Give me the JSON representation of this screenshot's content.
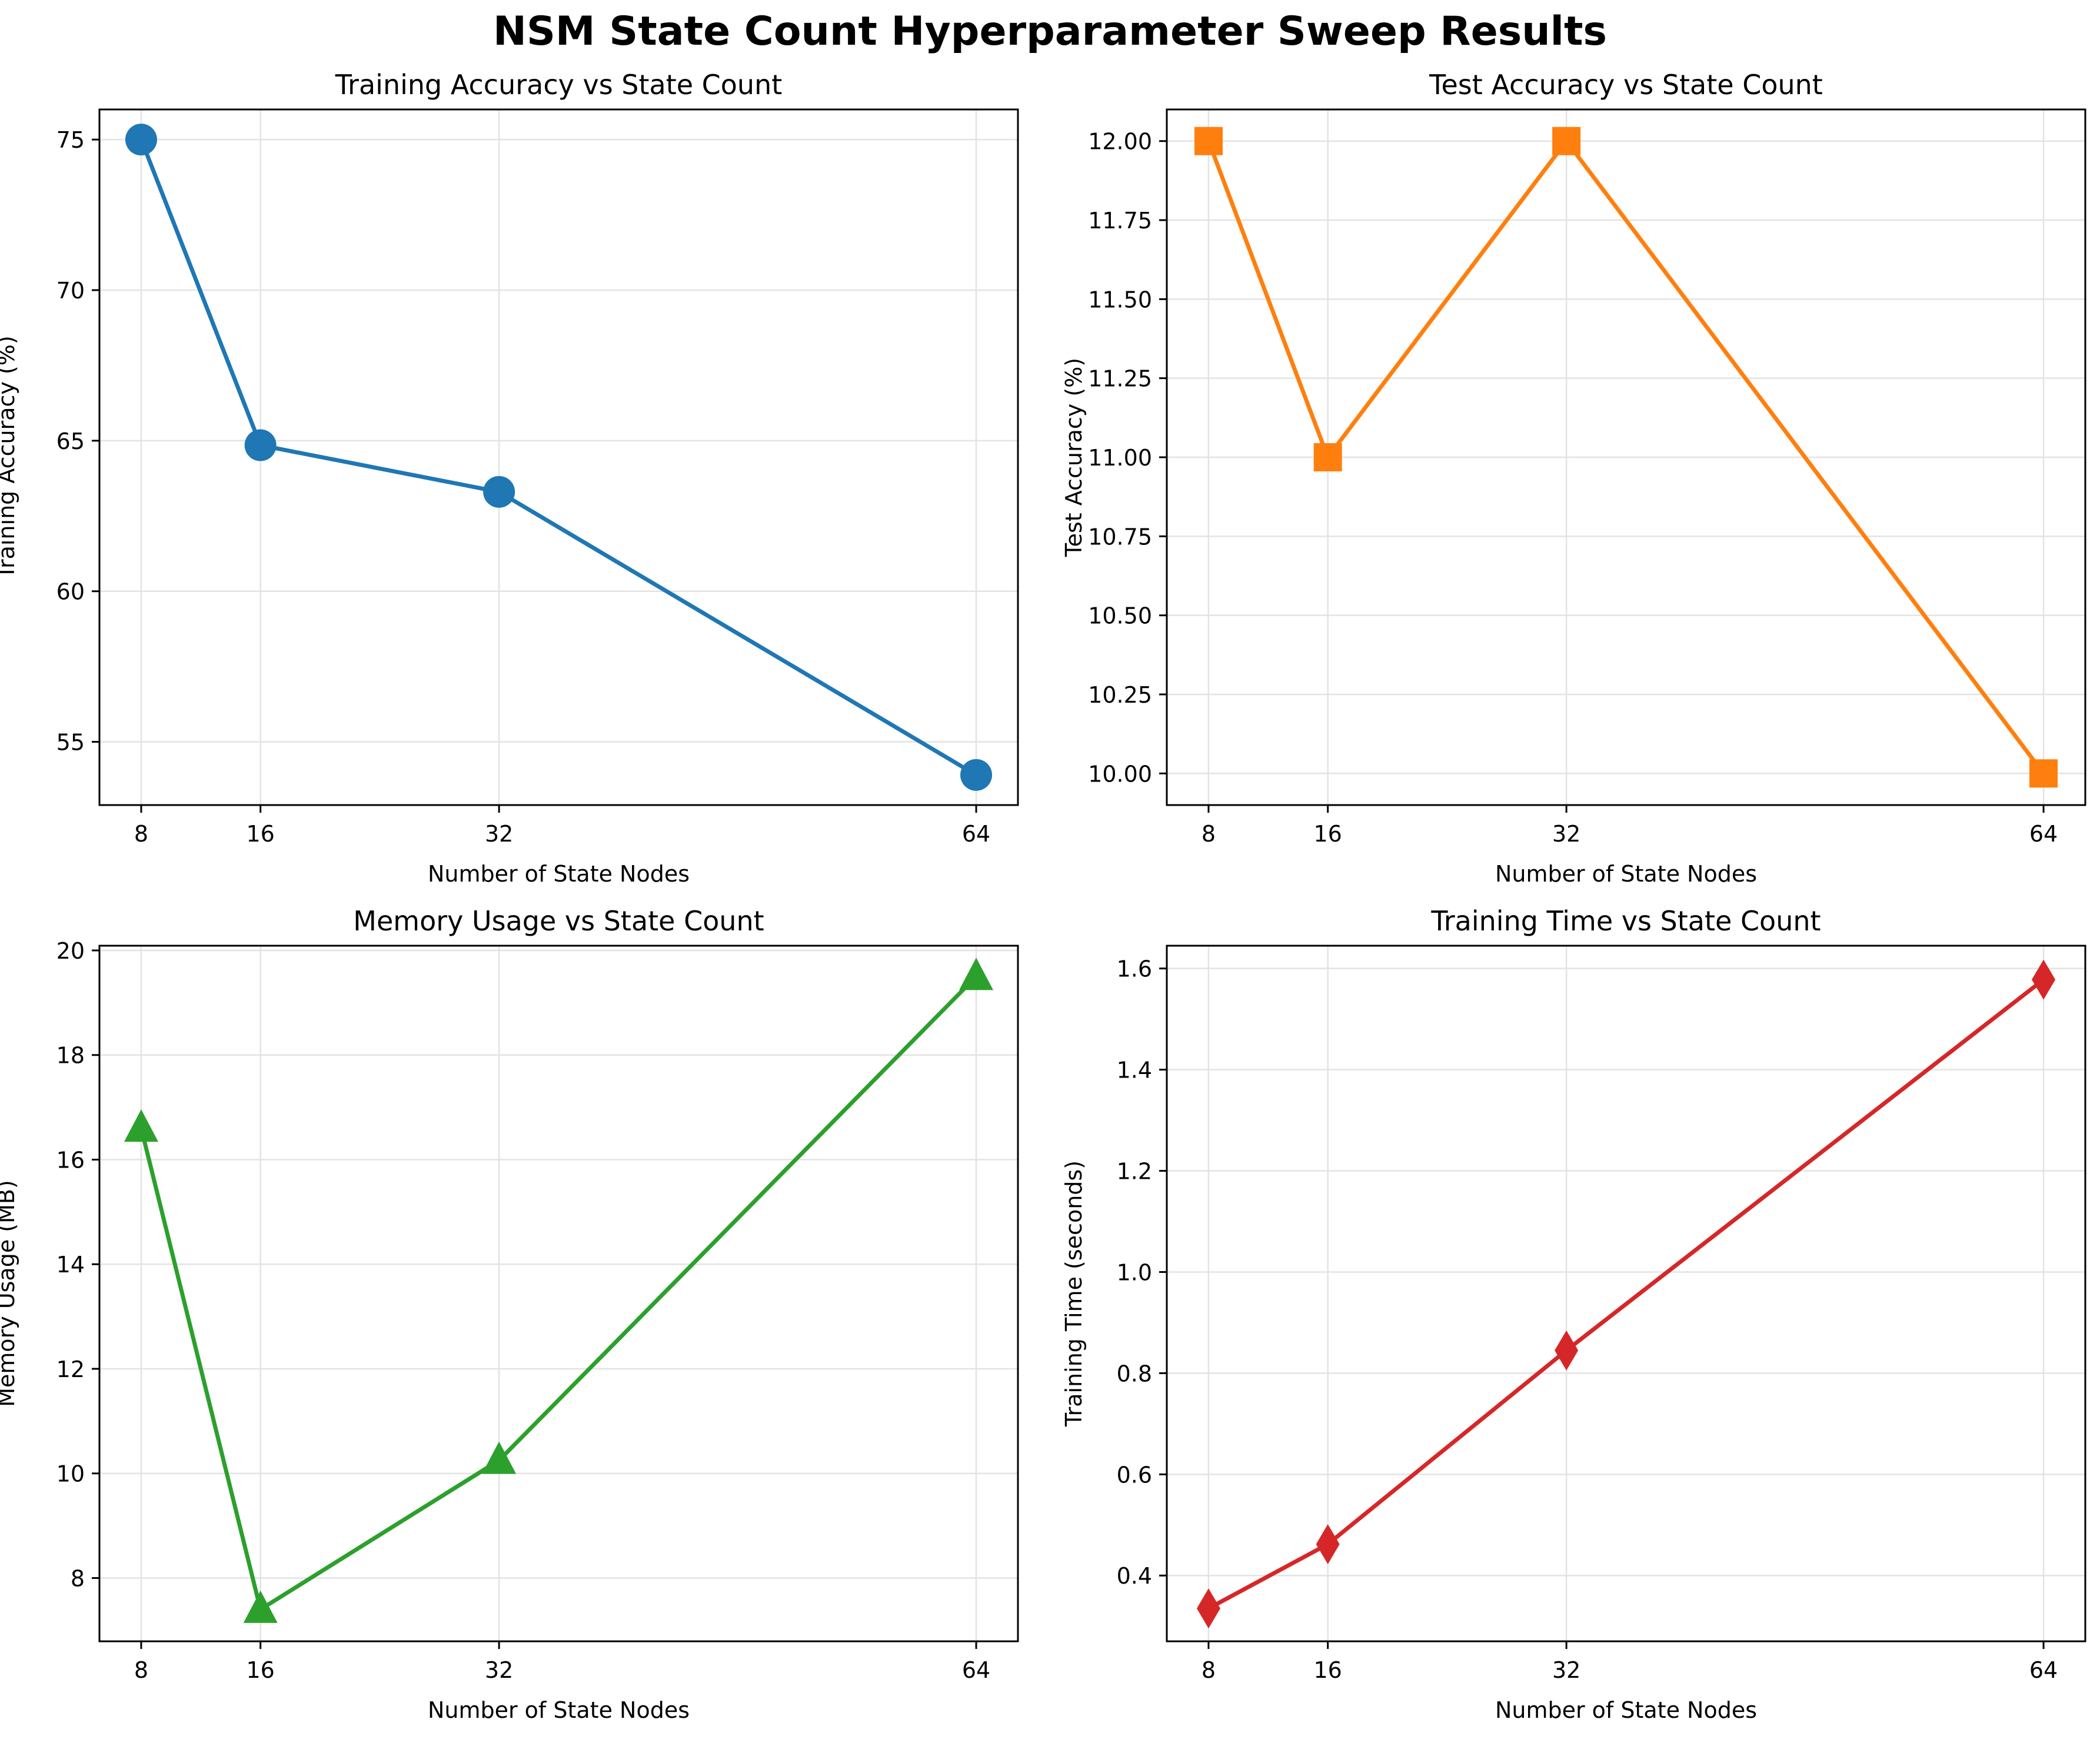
{
  "figure": {
    "suptitle": "NSM State Count Hyperparameter Sweep Results"
  },
  "chart_data": [
    {
      "type": "line",
      "title": "Training Accuracy vs State Count",
      "xlabel": "Number of State Nodes",
      "ylabel": "Training Accuracy (%)",
      "x": [
        8,
        16,
        32,
        64
      ],
      "xticks": [
        8,
        16,
        32,
        64
      ],
      "xlim": [
        5.2,
        66.8
      ],
      "yticks": [
        55,
        60,
        65,
        70,
        75
      ],
      "ytick_labels": [
        "55",
        "60",
        "65",
        "70",
        "75"
      ],
      "ylim": [
        52.9,
        76.0
      ],
      "grid": true,
      "series": [
        {
          "values": [
            75.0,
            64.85,
            63.3,
            53.9
          ],
          "color": "#1f77b4",
          "marker": "circle"
        }
      ]
    },
    {
      "type": "line",
      "title": "Test Accuracy vs State Count",
      "xlabel": "Number of State Nodes",
      "ylabel": "Test Accuracy (%)",
      "x": [
        8,
        16,
        32,
        64
      ],
      "xticks": [
        8,
        16,
        32,
        64
      ],
      "xlim": [
        5.2,
        66.8
      ],
      "yticks": [
        10.0,
        10.25,
        10.5,
        10.75,
        11.0,
        11.25,
        11.5,
        11.75,
        12.0
      ],
      "ytick_labels": [
        "10.00",
        "10.25",
        "10.50",
        "10.75",
        "11.00",
        "11.25",
        "11.50",
        "11.75",
        "12.00"
      ],
      "ylim": [
        9.9,
        12.1
      ],
      "grid": true,
      "series": [
        {
          "values": [
            12.0,
            11.0,
            12.0,
            10.0
          ],
          "color": "#ff7f0e",
          "marker": "square"
        }
      ]
    },
    {
      "type": "line",
      "title": "Memory Usage vs State Count",
      "xlabel": "Number of State Nodes",
      "ylabel": "Memory Usage (MB)",
      "x": [
        8,
        16,
        32,
        64
      ],
      "xticks": [
        8,
        16,
        32,
        64
      ],
      "xlim": [
        5.2,
        66.8
      ],
      "yticks": [
        8,
        10,
        12,
        14,
        16,
        18,
        20
      ],
      "ytick_labels": [
        "8",
        "10",
        "12",
        "14",
        "16",
        "18",
        "20"
      ],
      "ylim": [
        6.79,
        20.09
      ],
      "grid": true,
      "series": [
        {
          "values": [
            16.6,
            7.4,
            10.25,
            19.5
          ],
          "color": "#2ca02c",
          "marker": "triangle"
        }
      ]
    },
    {
      "type": "line",
      "title": "Training Time vs State Count",
      "xlabel": "Number of State Nodes",
      "ylabel": "Training Time (seconds)",
      "x": [
        8,
        16,
        32,
        64
      ],
      "xticks": [
        8,
        16,
        32,
        64
      ],
      "xlim": [
        5.2,
        66.8
      ],
      "yticks": [
        0.4,
        0.6,
        0.8,
        1.0,
        1.2,
        1.4,
        1.6
      ],
      "ytick_labels": [
        "0.4",
        "0.6",
        "0.8",
        "1.0",
        "1.2",
        "1.4",
        "1.6"
      ],
      "ylim": [
        0.27,
        1.645
      ],
      "grid": true,
      "series": [
        {
          "values": [
            0.335,
            0.462,
            0.845,
            1.578
          ],
          "color": "#d62728",
          "marker": "diamond"
        }
      ]
    }
  ]
}
